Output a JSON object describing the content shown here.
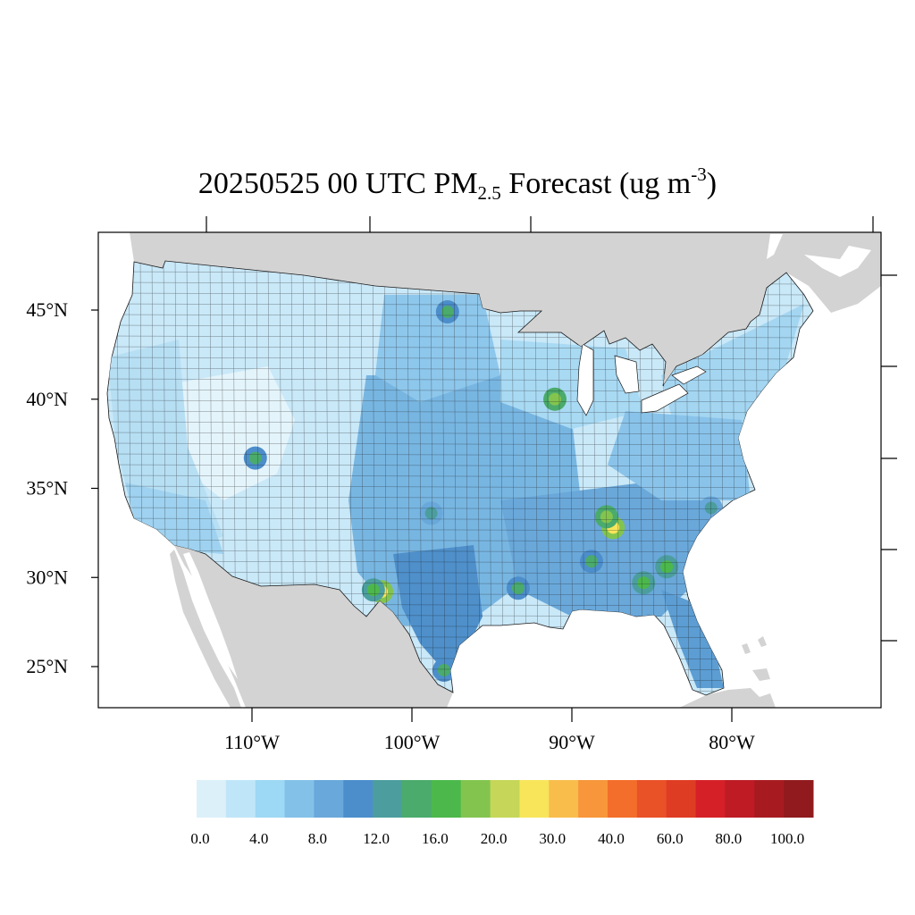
{
  "title": {
    "prefix": "20250525 00 UTC PM",
    "subscript": "2.5",
    "middle": " Forecast (ug m",
    "superscript": "-3",
    "suffix": ")"
  },
  "map": {
    "lat_labels": [
      {
        "lat": 45,
        "label": "45°N"
      },
      {
        "lat": 40,
        "label": "40°N"
      },
      {
        "lat": 35,
        "label": "35°N"
      },
      {
        "lat": 30,
        "label": "30°N"
      },
      {
        "lat": 25,
        "label": "25°N"
      }
    ],
    "lon_labels": [
      {
        "lon": -110,
        "label": "110°W"
      },
      {
        "lon": -100,
        "label": "100°W"
      },
      {
        "lon": -90,
        "label": "90°W"
      },
      {
        "lon": -80,
        "label": "80°W"
      }
    ],
    "colors": {
      "land": "#d3d3d3",
      "water": "#ffffff",
      "county_border": "#1a1a1a"
    },
    "hotspots": [
      {
        "lon": -87.5,
        "lat": 32.8,
        "level": 11
      },
      {
        "lon": -87.9,
        "lat": 33.4,
        "level": 9
      },
      {
        "lon": -101.7,
        "lat": 29.2,
        "level": 11
      },
      {
        "lon": -102.2,
        "lat": 29.3,
        "level": 8
      },
      {
        "lon": -84.2,
        "lat": 30.6,
        "level": 8
      },
      {
        "lon": -85.6,
        "lat": 29.7,
        "level": 8
      },
      {
        "lon": -93.3,
        "lat": 29.4,
        "level": 7
      },
      {
        "lon": -91.0,
        "lat": 40.0,
        "level": 9
      },
      {
        "lon": -97.2,
        "lat": 44.9,
        "level": 7
      },
      {
        "lon": -88.8,
        "lat": 30.9,
        "level": 7
      },
      {
        "lon": -98.0,
        "lat": 24.8,
        "level": 7
      },
      {
        "lon": -108.9,
        "lat": 36.7,
        "level": 7
      },
      {
        "lon": -98.5,
        "lat": 33.6,
        "level": 6
      },
      {
        "lon": -81.6,
        "lat": 33.9,
        "level": 6
      }
    ]
  },
  "colorbar": {
    "colors": [
      "#dcf0f9",
      "#bfe6f8",
      "#9dd8f4",
      "#83c1e8",
      "#69a8da",
      "#4c8ecb",
      "#4c9e9e",
      "#4aab6c",
      "#4cb84b",
      "#83c44f",
      "#c5d658",
      "#f8e55a",
      "#f8bd4b",
      "#f7963a",
      "#f36e2a",
      "#e95127",
      "#df3c24",
      "#d52027",
      "#be1b25",
      "#a71b20",
      "#901a1d"
    ],
    "labels": [
      "0.0",
      "4.0",
      "8.0",
      "12.0",
      "16.0",
      "20.0",
      "30.0",
      "40.0",
      "60.0",
      "80.0",
      "100.0"
    ]
  }
}
